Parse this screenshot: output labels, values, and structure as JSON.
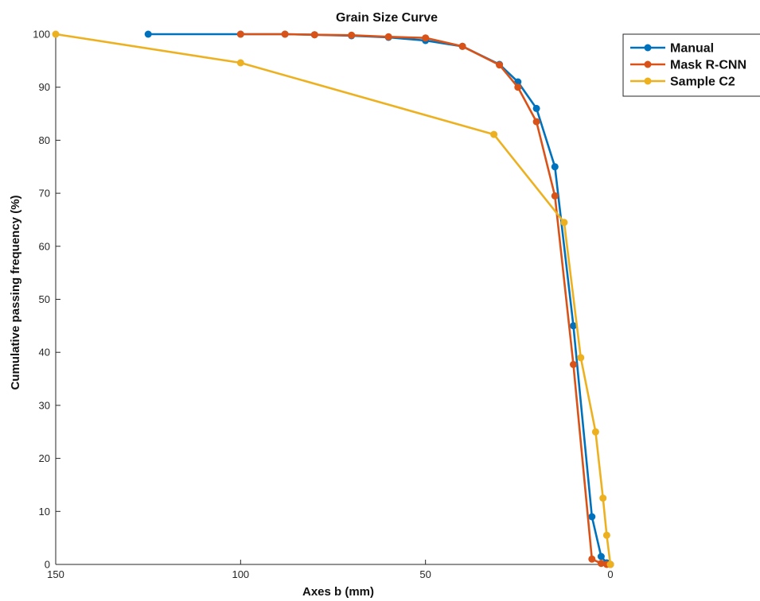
{
  "chart_data": {
    "type": "line",
    "title": "Grain Size Curve",
    "xlabel": "Axes b (mm)",
    "ylabel": "Cumulative passing frequency (%)",
    "xlim": [
      150,
      0
    ],
    "x_reversed": true,
    "ylim": [
      0,
      100
    ],
    "xticks": [
      150,
      100,
      50,
      0
    ],
    "yticks": [
      0,
      10,
      20,
      30,
      40,
      50,
      60,
      70,
      80,
      90,
      100
    ],
    "grid": false,
    "legend_position": "top-right",
    "series": [
      {
        "name": "Manual",
        "color": "#0072BD",
        "points": [
          [
            125,
            100
          ],
          [
            100,
            100
          ],
          [
            88,
            100
          ],
          [
            80,
            99.9
          ],
          [
            70,
            99.7
          ],
          [
            60,
            99.4
          ],
          [
            50,
            98.8
          ],
          [
            40,
            97.7
          ],
          [
            30,
            94.3
          ],
          [
            25,
            91
          ],
          [
            20,
            86
          ],
          [
            15,
            75
          ],
          [
            10,
            45
          ],
          [
            5,
            9
          ],
          [
            2.5,
            1.5
          ],
          [
            1,
            0.3
          ],
          [
            0,
            0
          ]
        ]
      },
      {
        "name": "Mask R-CNN",
        "color": "#D95319",
        "points": [
          [
            100,
            100
          ],
          [
            88,
            100
          ],
          [
            80,
            99.9
          ],
          [
            70,
            99.8
          ],
          [
            60,
            99.5
          ],
          [
            50,
            99.3
          ],
          [
            40,
            97.7
          ],
          [
            30,
            94.2
          ],
          [
            25,
            90
          ],
          [
            20,
            83.5
          ],
          [
            15,
            69.5
          ],
          [
            10,
            37.7
          ],
          [
            5,
            1
          ],
          [
            2.5,
            0.2
          ],
          [
            1,
            0
          ],
          [
            0,
            0
          ]
        ]
      },
      {
        "name": "Sample C2",
        "color": "#EDB120",
        "points": [
          [
            150,
            100
          ],
          [
            100,
            94.6
          ],
          [
            31.5,
            81.1
          ],
          [
            12.5,
            64.5
          ],
          [
            8,
            39
          ],
          [
            4,
            25
          ],
          [
            2,
            12.5
          ],
          [
            1,
            5.5
          ],
          [
            0,
            0
          ]
        ]
      }
    ]
  }
}
